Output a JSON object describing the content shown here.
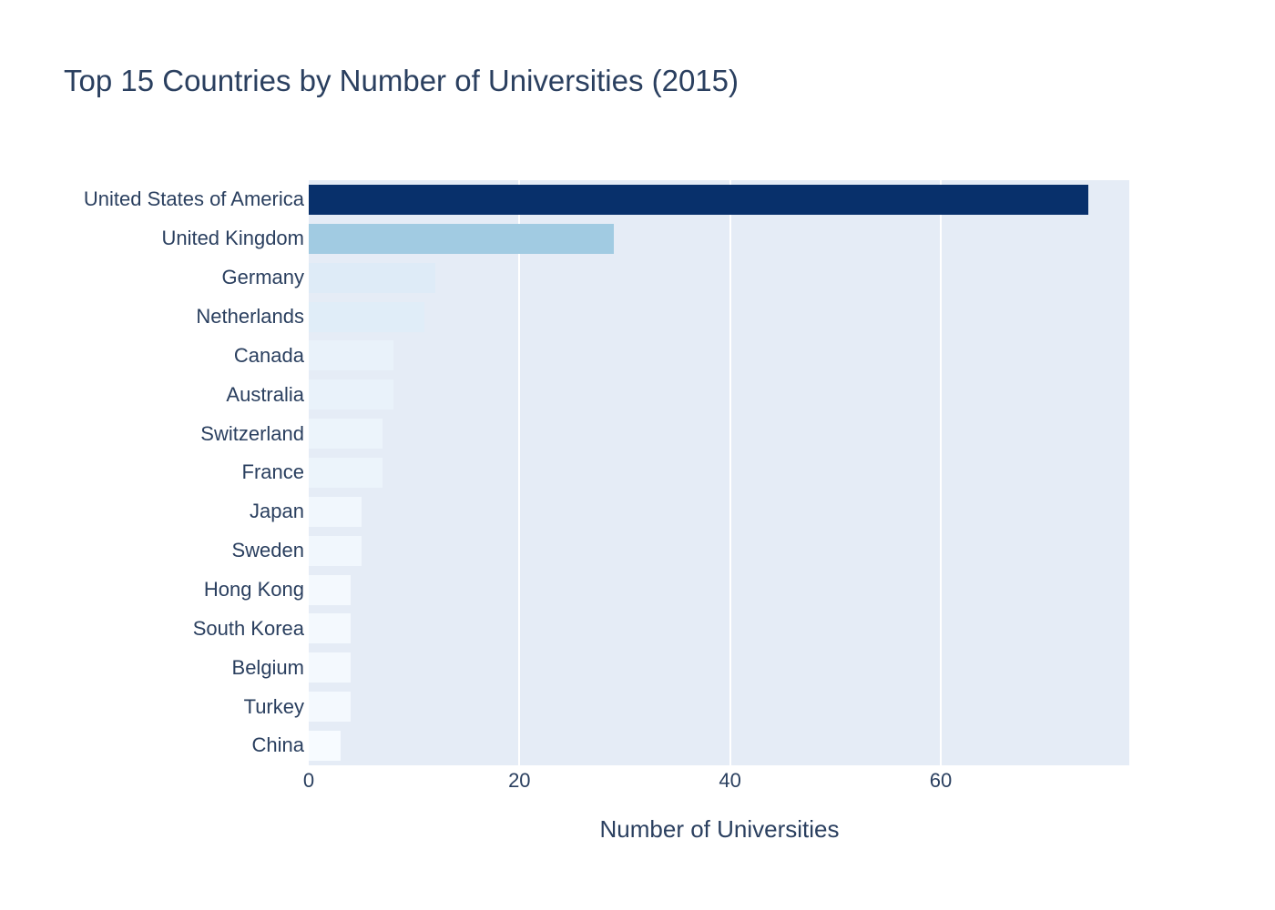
{
  "chart_data": {
    "type": "bar",
    "orientation": "horizontal",
    "title": "Top 15 Countries by Number of Universities (2015)",
    "xlabel": "Number of Universities",
    "ylabel": "",
    "categories": [
      "United States of America",
      "United Kingdom",
      "Germany",
      "Netherlands",
      "Canada",
      "Australia",
      "Switzerland",
      "France",
      "Japan",
      "Sweden",
      "Hong Kong",
      "South Korea",
      "Belgium",
      "Turkey",
      "China"
    ],
    "values": [
      74,
      29,
      12,
      11,
      8,
      8,
      7,
      7,
      5,
      5,
      4,
      4,
      4,
      4,
      3
    ],
    "bar_colors": [
      "#08306b",
      "#a1cbe2",
      "#deebf7",
      "#e0edf8",
      "#e9f2fa",
      "#e9f2fa",
      "#ecf4fb",
      "#ecf4fb",
      "#f1f7fd",
      "#f1f7fd",
      "#f4f9fe",
      "#f4f9fe",
      "#f4f9fe",
      "#f4f9fe",
      "#f7fbff"
    ],
    "colorscale": "Blues (value-mapped)",
    "xticks": [
      0,
      20,
      40,
      60
    ],
    "xlim": [
      0,
      77.9
    ],
    "grid": "vertical white gridlines at x ticks, drawn under bars",
    "legend": "none",
    "colors": {
      "plot_bgcolor": "#e5ecf6",
      "paper_bgcolor": "#ffffff",
      "text_color": "#2a3f5f",
      "gridline_color": "#ffffff"
    }
  }
}
